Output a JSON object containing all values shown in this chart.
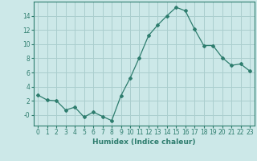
{
  "x": [
    0,
    1,
    2,
    3,
    4,
    5,
    6,
    7,
    8,
    9,
    10,
    11,
    12,
    13,
    14,
    15,
    16,
    17,
    18,
    19,
    20,
    21,
    22,
    23
  ],
  "y": [
    2.8,
    2.1,
    2.0,
    0.7,
    1.1,
    -0.3,
    0.4,
    -0.2,
    -0.8,
    2.7,
    5.2,
    8.1,
    11.2,
    12.7,
    14.0,
    15.2,
    14.7,
    12.1,
    9.8,
    9.8,
    8.1,
    7.0,
    7.2,
    6.2
  ],
  "line_color": "#2e7d6e",
  "marker": "D",
  "marker_size": 2.0,
  "bg_color": "#cce8e8",
  "grid_color": "#aacece",
  "xlabel": "Humidex (Indice chaleur)",
  "xlim": [
    -0.5,
    23.5
  ],
  "ylim": [
    -1.5,
    16.0
  ],
  "yticks": [
    0,
    2,
    4,
    6,
    8,
    10,
    12,
    14
  ],
  "ytick_labels": [
    "-0",
    "2",
    "4",
    "6",
    "8",
    "10",
    "12",
    "14"
  ],
  "xticks": [
    0,
    1,
    2,
    3,
    4,
    5,
    6,
    7,
    8,
    9,
    10,
    11,
    12,
    13,
    14,
    15,
    16,
    17,
    18,
    19,
    20,
    21,
    22,
    23
  ],
  "tick_color": "#2e7d6e",
  "label_fontsize": 6.5,
  "tick_fontsize": 5.5,
  "linewidth": 0.9
}
